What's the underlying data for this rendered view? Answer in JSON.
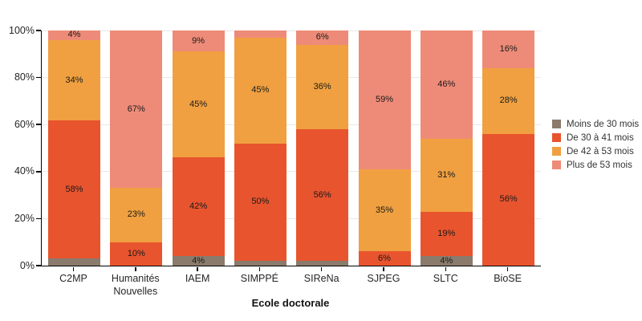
{
  "chart_data": {
    "type": "bar",
    "subtype": "stacked-percent",
    "title": "",
    "xlabel": "Ecole doctorale",
    "ylabel": "",
    "ylim": [
      0,
      100
    ],
    "y_ticks": [
      "0%",
      "20%",
      "40%",
      "60%",
      "80%",
      "100%"
    ],
    "grid": "horizontal",
    "legend_position": "right",
    "categories": [
      "C2MP",
      "Humanités Nouvelles",
      "IAEM",
      "SIMPPÉ",
      "SIReNa",
      "SJPEG",
      "SLTC",
      "BioSE"
    ],
    "series": [
      {
        "name": "Moins de 30 mois",
        "color": "#8A7B6C",
        "values": [
          3,
          0,
          4,
          2,
          2,
          0,
          4,
          0
        ],
        "labels": [
          "",
          "",
          "4%",
          "",
          "",
          "",
          "4%",
          ""
        ]
      },
      {
        "name": "De 30 à 41 mois",
        "color": "#E8542E",
        "values": [
          58,
          10,
          42,
          50,
          56,
          6,
          19,
          56
        ],
        "labels": [
          "58%",
          "10%",
          "42%",
          "50%",
          "56%",
          "6%",
          "19%",
          "56%"
        ]
      },
      {
        "name": "De 42 à 53 mois",
        "color": "#F0A040",
        "values": [
          34,
          23,
          45,
          45,
          36,
          35,
          31,
          28
        ],
        "labels": [
          "34%",
          "23%",
          "45%",
          "45%",
          "36%",
          "35%",
          "31%",
          "28%"
        ]
      },
      {
        "name": "Plus de 53 mois",
        "color": "#EE8B78",
        "values": [
          4,
          67,
          9,
          3,
          6,
          59,
          46,
          16
        ],
        "labels": [
          "4%",
          "67%",
          "9%",
          "",
          "6%",
          "59%",
          "46%",
          "16%"
        ]
      }
    ],
    "axis_color": "#000000",
    "grid_color": "#E8E8E8"
  }
}
